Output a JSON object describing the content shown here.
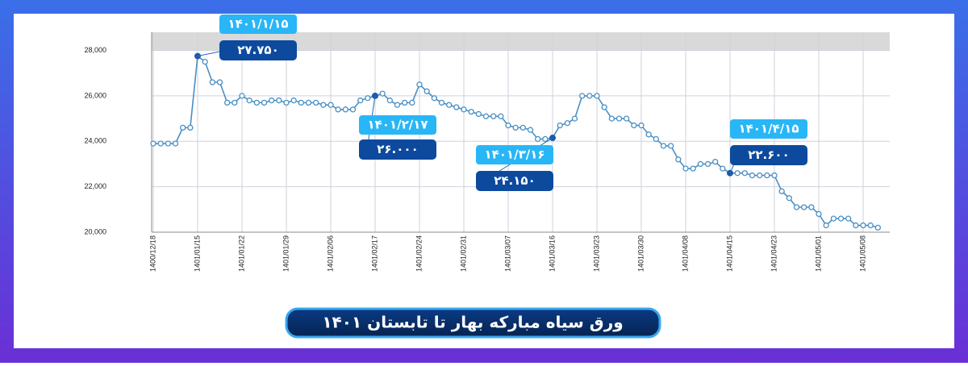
{
  "chart_data": {
    "type": "line",
    "title": "ورق سیاه مبارکه بهار تا تابستان ۱۴۰۱",
    "categories": [
      "1400/12/18",
      null,
      null,
      null,
      null,
      null,
      "1401/01/15",
      null,
      null,
      null,
      null,
      null,
      "1401/01/22",
      null,
      null,
      null,
      null,
      null,
      "1401/01/29",
      null,
      null,
      null,
      null,
      null,
      "1401/02/06",
      null,
      null,
      null,
      null,
      null,
      "1401/02/17",
      null,
      null,
      null,
      null,
      null,
      "1401/02/24",
      null,
      null,
      null,
      null,
      null,
      "1401/02/31",
      null,
      null,
      null,
      null,
      null,
      "1401/03/07",
      null,
      null,
      null,
      null,
      null,
      "1401/03/16",
      null,
      null,
      null,
      null,
      null,
      "1401/03/23",
      null,
      null,
      null,
      null,
      null,
      "1401/03/30",
      null,
      null,
      null,
      null,
      null,
      "1401/04/08",
      null,
      null,
      null,
      null,
      null,
      "1401/04/15",
      null,
      null,
      null,
      null,
      null,
      "1401/04/23",
      null,
      null,
      null,
      null,
      null,
      "1401/05/01",
      null,
      null,
      null,
      null,
      null,
      "1401/05/08",
      null,
      null
    ],
    "series": [
      {
        "color": "#4a8fc4",
        "values": [
          23900,
          23900,
          23900,
          23900,
          24600,
          24600,
          27750,
          27500,
          26600,
          26600,
          25700,
          25700,
          26000,
          25800,
          25700,
          25700,
          25800,
          25800,
          25700,
          25800,
          25700,
          25700,
          25700,
          25600,
          25600,
          25400,
          25400,
          25400,
          25800,
          25900,
          26000,
          26100,
          25800,
          25600,
          25700,
          25700,
          26500,
          26200,
          25900,
          25700,
          25600,
          25500,
          25400,
          25300,
          25200,
          25100,
          25100,
          25100,
          24700,
          24600,
          24600,
          24500,
          24100,
          24100,
          24150,
          24700,
          24800,
          25000,
          26000,
          26000,
          26000,
          25500,
          25000,
          25000,
          25000,
          24700,
          24700,
          24300,
          24100,
          23800,
          23800,
          23200,
          22800,
          22800,
          23000,
          23000,
          23100,
          22800,
          22600,
          22600,
          22600,
          22500,
          22500,
          22500,
          22500,
          21800,
          21500,
          21100,
          21100,
          21100,
          20800,
          20300,
          20600,
          20600,
          20600,
          20300,
          20300,
          20300,
          20200
        ]
      }
    ],
    "ylim": [
      20000,
      28800
    ],
    "yticks": [
      {
        "value": 20000,
        "label": "20,000"
      },
      {
        "value": 22000,
        "label": "22,000"
      },
      {
        "value": 24000,
        "label": "24,000"
      },
      {
        "value": 26000,
        "label": "26,000"
      },
      {
        "value": 28000,
        "label": "28,000"
      }
    ],
    "grid": true,
    "annotations": [
      {
        "date": "۱۴۰۱/۱/۱۵",
        "value_label": "۲۷.۷۵۰"
      },
      {
        "date": "۱۴۰۱/۲/۱۷",
        "value_label": "۲۶.۰۰۰"
      },
      {
        "date": "۱۴۰۱/۳/۱۶",
        "value_label": "۲۴.۱۵۰"
      },
      {
        "date": "۱۴۰۱/۴/۱۵",
        "value_label": "۲۲.۶۰۰"
      }
    ]
  }
}
